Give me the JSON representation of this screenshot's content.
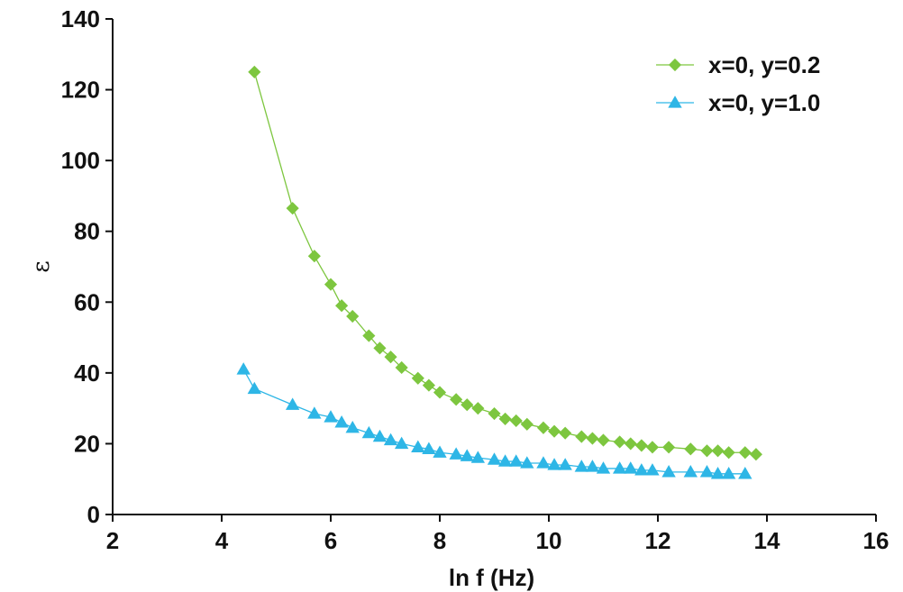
{
  "chart_data": {
    "type": "line",
    "title": "",
    "xlabel": "ln f (Hz)",
    "ylabel": "ε",
    "xlim": [
      2,
      16
    ],
    "ylim": [
      0,
      140
    ],
    "xticks": [
      "2",
      "4",
      "6",
      "8",
      "10",
      "12",
      "14",
      "16"
    ],
    "yticks": [
      "0",
      "20",
      "40",
      "60",
      "80",
      "100",
      "120",
      "140"
    ],
    "grid": false,
    "legend_position": "top-right",
    "series": [
      {
        "name": "x=0, y=0.2",
        "color": "#7dc63f",
        "marker": "diamond",
        "x": [
          4.6,
          5.3,
          5.7,
          6.0,
          6.2,
          6.4,
          6.7,
          6.9,
          7.1,
          7.3,
          7.6,
          7.8,
          8.0,
          8.3,
          8.5,
          8.7,
          9.0,
          9.2,
          9.4,
          9.6,
          9.9,
          10.1,
          10.3,
          10.6,
          10.8,
          11.0,
          11.3,
          11.5,
          11.7,
          11.9,
          12.2,
          12.6,
          12.9,
          13.1,
          13.3,
          13.6,
          13.8
        ],
        "y": [
          125,
          86.5,
          73,
          65,
          59,
          56,
          50.5,
          47,
          44.5,
          41.5,
          38.5,
          36.5,
          34.5,
          32.5,
          31,
          30,
          28.5,
          27,
          26.5,
          25.5,
          24.5,
          23.5,
          23,
          22,
          21.5,
          21,
          20.5,
          20,
          19.5,
          19,
          19,
          18.5,
          18,
          18,
          17.5,
          17.5,
          17
        ]
      },
      {
        "name": "x=0, y=1.0",
        "color": "#2eb6e6",
        "marker": "triangle",
        "x": [
          4.4,
          4.6,
          5.3,
          5.7,
          6.0,
          6.2,
          6.4,
          6.7,
          6.9,
          7.1,
          7.3,
          7.6,
          7.8,
          8.0,
          8.3,
          8.5,
          8.7,
          9.0,
          9.2,
          9.4,
          9.6,
          9.9,
          10.1,
          10.3,
          10.6,
          10.8,
          11.0,
          11.3,
          11.5,
          11.7,
          11.9,
          12.2,
          12.6,
          12.9,
          13.1,
          13.3,
          13.6
        ],
        "y": [
          41,
          35.5,
          31,
          28.5,
          27.5,
          26,
          24.5,
          23,
          22,
          21,
          20,
          19,
          18.5,
          17.5,
          17,
          16.5,
          16,
          15.5,
          15,
          15,
          14.5,
          14.5,
          14,
          14,
          13.5,
          13.5,
          13,
          13,
          13,
          12.5,
          12.5,
          12,
          12,
          12,
          11.5,
          11.5,
          11.5
        ]
      }
    ]
  }
}
